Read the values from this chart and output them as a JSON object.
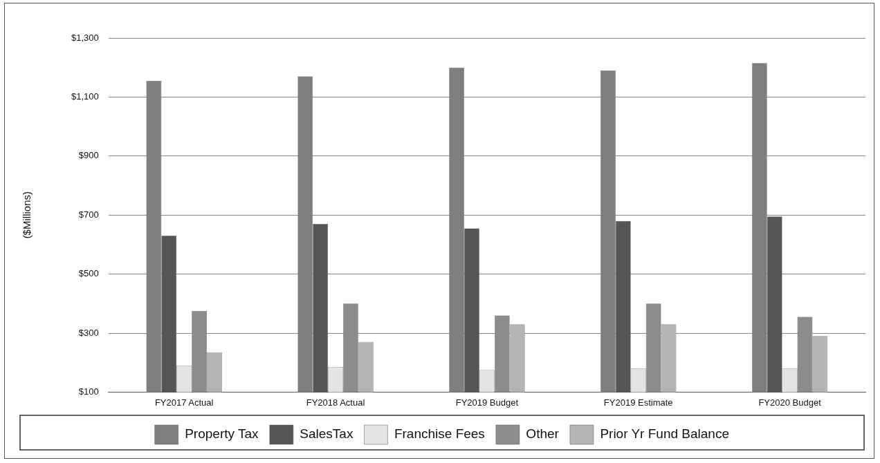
{
  "chart_data": {
    "type": "bar",
    "ylabel": "($Millions)",
    "categories": [
      "FY2017 Actual",
      "FY2018 Actual",
      "FY2019 Budget",
      "FY2019 Estimate",
      "FY2020 Budget"
    ],
    "series": [
      {
        "name": "Property Tax",
        "color": "#7f7f7f",
        "values": [
          1155,
          1170,
          1200,
          1190,
          1215
        ]
      },
      {
        "name": "SalesTax",
        "color": "#555555",
        "values": [
          630,
          670,
          655,
          680,
          695
        ]
      },
      {
        "name": "Franchise Fees",
        "color": "#e4e4e4",
        "values": [
          190,
          185,
          175,
          180,
          180
        ]
      },
      {
        "name": "Other",
        "color": "#8c8c8c",
        "values": [
          375,
          400,
          360,
          400,
          355
        ]
      },
      {
        "name": "Prior Yr Fund Balance",
        "color": "#b4b4b4",
        "values": [
          235,
          270,
          330,
          330,
          290
        ]
      }
    ],
    "ylim": [
      100,
      1300
    ],
    "yticks": [
      {
        "value": 100,
        "label": "$100"
      },
      {
        "value": 300,
        "label": "$300"
      },
      {
        "value": 500,
        "label": "$500"
      },
      {
        "value": 700,
        "label": "$700"
      },
      {
        "value": 900,
        "label": "$900"
      },
      {
        "value": 1100,
        "label": "$1,100"
      },
      {
        "value": 1300,
        "label": "$1,300"
      }
    ],
    "grid": "y",
    "legend": "bottom"
  }
}
